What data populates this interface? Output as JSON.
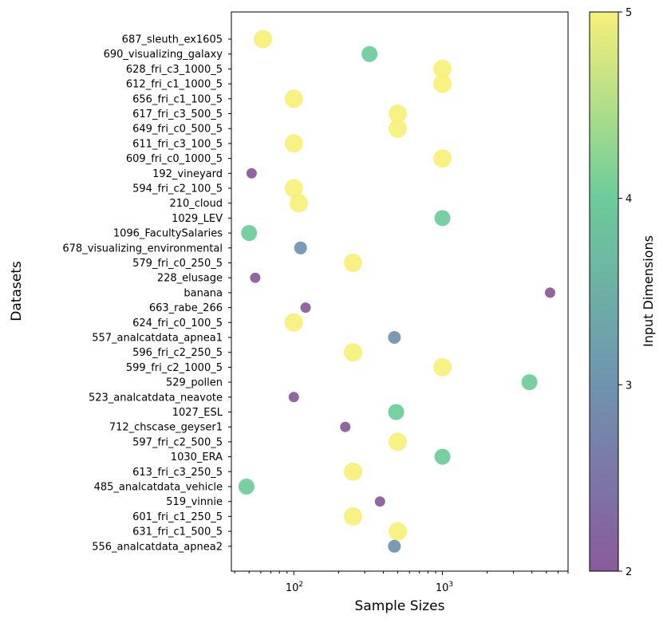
{
  "chart_data": {
    "type": "scatter",
    "xlabel": "Sample Sizes",
    "ylabel": "Datasets",
    "xscale": "log",
    "xlim": [
      38,
      7000
    ],
    "x_ticks": [
      {
        "value": 100,
        "base": "10",
        "exp": "2"
      },
      {
        "value": 1000,
        "base": "10",
        "exp": "3"
      }
    ],
    "colorbar": {
      "label": "Input Dimensions",
      "min": 2,
      "max": 5,
      "ticks": [
        "2",
        "3",
        "4",
        "5"
      ]
    },
    "colors": {
      "2": "#8a5a9a",
      "3": "#6f93b0",
      "4": "#6ccc9a",
      "5": "#f7f07a"
    },
    "points": [
      {
        "name": "687_sleuth_ex1605",
        "x": 62,
        "dim": 5
      },
      {
        "name": "690_visualizing_galaxy",
        "x": 323,
        "dim": 4
      },
      {
        "name": "628_fri_c3_1000_5",
        "x": 1000,
        "dim": 5
      },
      {
        "name": "612_fri_c1_1000_5",
        "x": 1000,
        "dim": 5
      },
      {
        "name": "656_fri_c1_100_5",
        "x": 100,
        "dim": 5
      },
      {
        "name": "617_fri_c3_500_5",
        "x": 500,
        "dim": 5
      },
      {
        "name": "649_fri_c0_500_5",
        "x": 500,
        "dim": 5
      },
      {
        "name": "611_fri_c3_100_5",
        "x": 100,
        "dim": 5
      },
      {
        "name": "609_fri_c0_1000_5",
        "x": 1000,
        "dim": 5
      },
      {
        "name": "192_vineyard",
        "x": 52,
        "dim": 2
      },
      {
        "name": "594_fri_c2_100_5",
        "x": 100,
        "dim": 5
      },
      {
        "name": "210_cloud",
        "x": 108,
        "dim": 5
      },
      {
        "name": "1029_LEV",
        "x": 1000,
        "dim": 4
      },
      {
        "name": "1096_FacultySalaries",
        "x": 50,
        "dim": 4
      },
      {
        "name": "678_visualizing_environmental",
        "x": 111,
        "dim": 3
      },
      {
        "name": "579_fri_c0_250_5",
        "x": 250,
        "dim": 5
      },
      {
        "name": "228_elusage",
        "x": 55,
        "dim": 2
      },
      {
        "name": "banana",
        "x": 5300,
        "dim": 2
      },
      {
        "name": "663_rabe_266",
        "x": 120,
        "dim": 2
      },
      {
        "name": "624_fri_c0_100_5",
        "x": 100,
        "dim": 5
      },
      {
        "name": "557_analcatdata_apnea1",
        "x": 475,
        "dim": 3
      },
      {
        "name": "596_fri_c2_250_5",
        "x": 250,
        "dim": 5
      },
      {
        "name": "599_fri_c2_1000_5",
        "x": 1000,
        "dim": 5
      },
      {
        "name": "529_pollen",
        "x": 3848,
        "dim": 4
      },
      {
        "name": "523_analcatdata_neavote",
        "x": 100,
        "dim": 2
      },
      {
        "name": "1027_ESL",
        "x": 488,
        "dim": 4
      },
      {
        "name": "712_chscase_geyser1",
        "x": 222,
        "dim": 2
      },
      {
        "name": "597_fri_c2_500_5",
        "x": 500,
        "dim": 5
      },
      {
        "name": "1030_ERA",
        "x": 1000,
        "dim": 4
      },
      {
        "name": "613_fri_c3_250_5",
        "x": 250,
        "dim": 5
      },
      {
        "name": "485_analcatdata_vehicle",
        "x": 48,
        "dim": 4
      },
      {
        "name": "519_vinnie",
        "x": 380,
        "dim": 2
      },
      {
        "name": "601_fri_c1_250_5",
        "x": 250,
        "dim": 5
      },
      {
        "name": "631_fri_c1_500_5",
        "x": 500,
        "dim": 5
      },
      {
        "name": "556_analcatdata_apnea2",
        "x": 475,
        "dim": 3
      }
    ]
  }
}
